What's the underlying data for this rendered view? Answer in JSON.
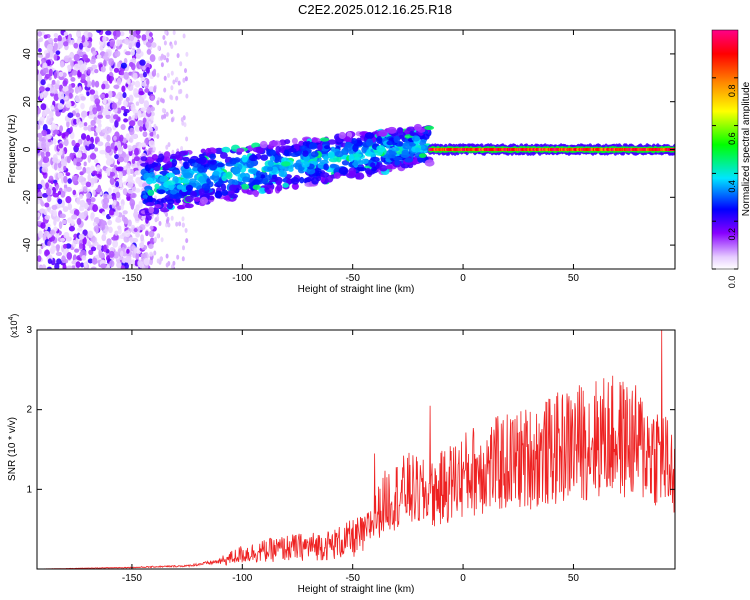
{
  "title": "C2E2.2025.012.16.25.R18",
  "chart_data": [
    {
      "type": "heatmap",
      "title": "C2E2.2025.012.16.25.R18",
      "xlabel": "Height of straight line (km)",
      "ylabel": "Frequency (Hz)",
      "xlim": [
        -193,
        96
      ],
      "ylim": [
        -50,
        50
      ],
      "xticks": [
        "-150",
        "-100",
        "-50",
        "0",
        "50"
      ],
      "xtick_values": [
        -150,
        -100,
        -50,
        0,
        50
      ],
      "yticks": [
        "-40",
        "-20",
        "0",
        "20",
        "40"
      ],
      "ytick_values": [
        -40,
        -20,
        0,
        20,
        40
      ],
      "colorbar": {
        "label": "Normalized spectral amplitude",
        "ticks": [
          "0.0",
          "0.2",
          "0.4",
          "0.6",
          "0.8"
        ],
        "tick_values": [
          0.0,
          0.2,
          0.4,
          0.6,
          0.8
        ],
        "range": [
          0,
          1
        ],
        "colors": [
          "#ffffff",
          "#e6ccff",
          "#8800ff",
          "#0000ff",
          "#00e5ff",
          "#00ff00",
          "#ffff00",
          "#ff8800",
          "#ff0000",
          "#ff0088"
        ]
      },
      "features": [
        {
          "region": "broadband noise",
          "x_range": [
            -193,
            -140
          ],
          "y_range": [
            -50,
            50
          ],
          "amplitude": 0.15
        },
        {
          "region": "sparse noise",
          "x_range": [
            -140,
            -125
          ],
          "y_range": [
            -50,
            50
          ],
          "amplitude": 0.05
        },
        {
          "region": "rising band",
          "x_start": -145,
          "x_end": -15,
          "center_start": -15,
          "center_end": 2,
          "amplitude": 0.35
        },
        {
          "region": "steady line",
          "x_range": [
            -15,
            96
          ],
          "center": 0,
          "amplitude": 0.9
        }
      ]
    },
    {
      "type": "line",
      "xlabel": "Height of straight line (km)",
      "ylabel": "SNR (10 * v/v)",
      "y_multiplier": "(x10",
      "y_multiplier_exp": "4",
      "xlim": [
        -193,
        96
      ],
      "ylim": [
        0,
        3
      ],
      "xticks": [
        "-150",
        "-100",
        "-50",
        "0",
        "50"
      ],
      "xtick_values": [
        -150,
        -100,
        -50,
        0,
        50
      ],
      "yticks": [
        "1",
        "2",
        "3"
      ],
      "ytick_values": [
        1,
        2,
        3
      ],
      "color": "#ee2222",
      "envelope": {
        "x": [
          -193,
          -150,
          -125,
          -110,
          -100,
          -80,
          -60,
          -45,
          -35,
          -25,
          -15,
          -5,
          5,
          20,
          35,
          50,
          65,
          75,
          85,
          90,
          96
        ],
        "y": [
          0.0,
          0.02,
          0.04,
          0.1,
          0.2,
          0.28,
          0.32,
          0.45,
          0.9,
          1.05,
          0.95,
          1.15,
          1.3,
          1.4,
          1.5,
          1.65,
          1.75,
          1.7,
          1.55,
          1.5,
          1.2
        ]
      },
      "peaks": [
        {
          "x": -40,
          "y": 1.45
        },
        {
          "x": -15,
          "y": 2.05
        },
        {
          "x": 90,
          "y": 3.0
        }
      ]
    }
  ]
}
